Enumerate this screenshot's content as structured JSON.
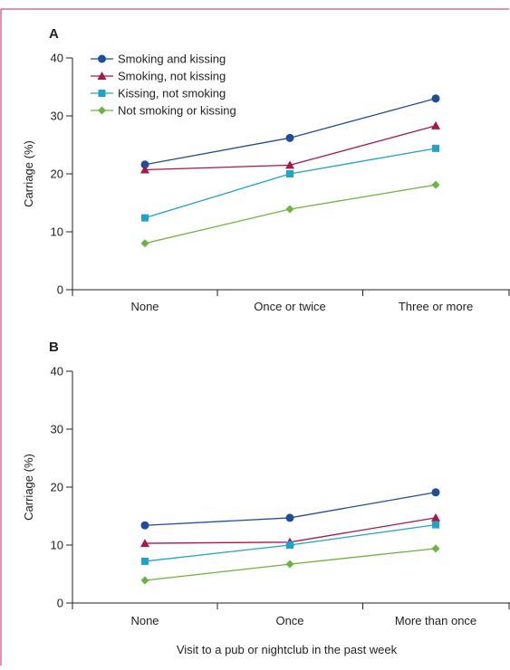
{
  "chart_data": [
    {
      "type": "line",
      "panel_label": "A",
      "ylabel": "Carriage (%)",
      "xlabel": "",
      "ylim": [
        0,
        40
      ],
      "yticks": [
        0,
        10,
        20,
        30,
        40
      ],
      "categories": [
        "None",
        "Once or twice",
        "Three or more"
      ],
      "legend_position": "top-left",
      "grid": false,
      "series": [
        {
          "name": "Smoking and kissing",
          "color": "#1f4e96",
          "marker": "circle",
          "values": [
            21.6,
            26.2,
            33.0
          ]
        },
        {
          "name": "Smoking, not kissing",
          "color": "#a8174a",
          "marker": "triangle",
          "values": [
            20.7,
            21.5,
            28.3
          ]
        },
        {
          "name": "Kissing, not smoking",
          "color": "#1fa3c7",
          "marker": "square",
          "values": [
            12.4,
            20.0,
            24.4
          ]
        },
        {
          "name": "Not smoking or kissing",
          "color": "#6db33f",
          "marker": "diamond",
          "values": [
            8.0,
            13.9,
            18.1
          ]
        }
      ]
    },
    {
      "type": "line",
      "panel_label": "B",
      "ylabel": "Carriage (%)",
      "xlabel": "Visit to a pub or nightclub in the past week",
      "ylim": [
        0,
        40
      ],
      "yticks": [
        0,
        10,
        20,
        30,
        40
      ],
      "categories": [
        "None",
        "Once",
        "More than once"
      ],
      "grid": false,
      "series": [
        {
          "name": "Smoking and kissing",
          "color": "#1f4e96",
          "marker": "circle",
          "values": [
            13.4,
            14.7,
            19.1
          ]
        },
        {
          "name": "Smoking, not kissing",
          "color": "#a8174a",
          "marker": "triangle",
          "values": [
            10.3,
            10.5,
            14.7
          ]
        },
        {
          "name": "Kissing, not smoking",
          "color": "#1fa3c7",
          "marker": "square",
          "values": [
            7.2,
            10.0,
            13.5
          ]
        },
        {
          "name": "Not smoking or kissing",
          "color": "#6db33f",
          "marker": "diamond",
          "values": [
            3.9,
            6.7,
            9.4
          ]
        }
      ]
    }
  ],
  "frame": {
    "border_color": "#c8255a"
  }
}
